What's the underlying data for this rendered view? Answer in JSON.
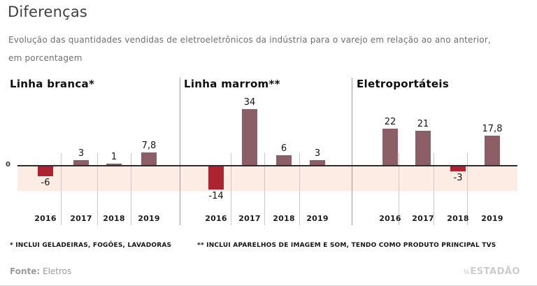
{
  "header": {
    "title": "Diferenças",
    "subtitle": "Evolução das quantidades vendidas de eletroeletrônicos da indústria para o varejo em relação ao ano anterior, em porcentagem",
    "subtitle_line1": "Evolução das quantidades vendidas de eletroeletrônicos da indústria para o varejo em relação ao ano anterior,",
    "subtitle_line2": "em porcentagem"
  },
  "chart_data": {
    "type": "bar",
    "title": "Diferenças",
    "subtitle": "Evolução das quantidades vendidas de eletroeletrônicos da indústria para o varejo em relação ao ano anterior, em porcentagem",
    "unit": "%",
    "categories": [
      "2016",
      "2017",
      "2018",
      "2019"
    ],
    "zero_label": "0",
    "ylim": [
      -14.5,
      34
    ],
    "grid": "vertical-separators",
    "groups": [
      {
        "name": "Linha branca*",
        "values": [
          -6,
          3,
          1,
          7.8
        ],
        "value_labels": [
          "-6",
          "3",
          "1",
          "7,8"
        ]
      },
      {
        "name": "Linha marrom**",
        "values": [
          -14,
          34,
          6,
          3
        ],
        "value_labels": [
          "-14",
          "34",
          "6",
          "3"
        ]
      },
      {
        "name": "Eletroportáteis",
        "values": [
          22,
          21,
          -3,
          17.8
        ],
        "value_labels": [
          "22",
          "21",
          "-3",
          "17,8"
        ]
      }
    ],
    "colors": {
      "positive_bar": "#8c5f66",
      "negative_bar": "#ab2430",
      "negative_band": "#fcece3",
      "zero_line": "#2e2e2e",
      "gridline": "#c9c9c9",
      "group_divider": "#9c9c9c"
    }
  },
  "footnotes": [
    "* INCLUI GELADEIRAS, FOGÕES, LAVADORAS",
    "** INCLUI APARELHOS DE IMAGEM E SOM, TENDO COMO PRODUTO PRINCIPAL TVS"
  ],
  "footer": {
    "source_label": "Fonte:",
    "source_value": "Eletros",
    "brand_mark": "¾",
    "brand": "ESTADÃO"
  }
}
